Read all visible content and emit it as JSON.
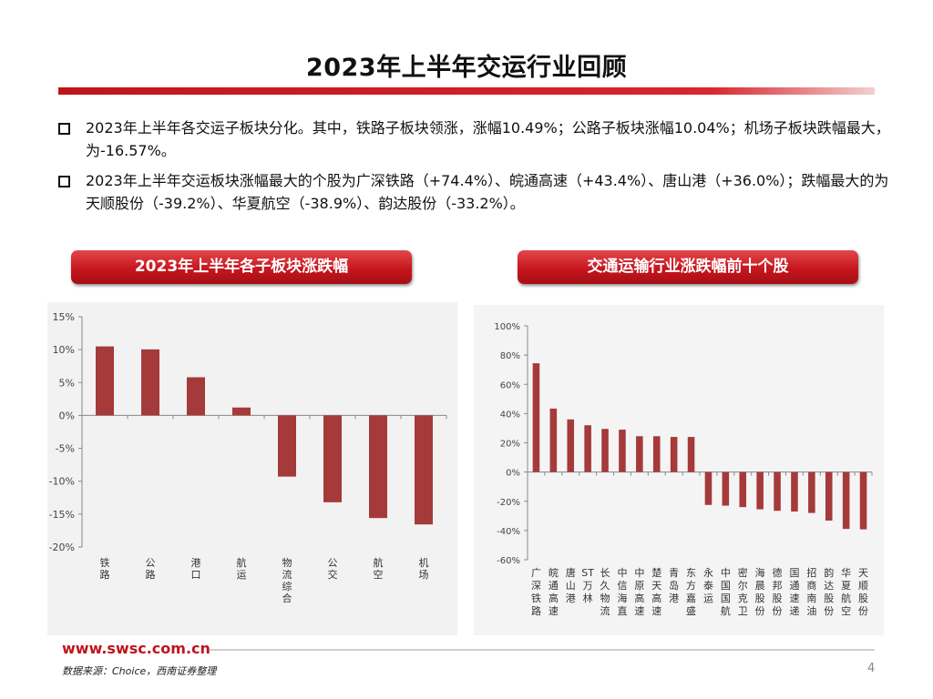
{
  "page": {
    "title": "2023年上半年交运行业回顾",
    "bullets": [
      "2023年上半年各交运子板块分化。其中，铁路子板块领涨，涨幅10.49%；公路子板块涨幅10.04%；机场子板块跌幅最大，为-16.57%。",
      "2023年上半年交运板块涨幅最大的个股为广深铁路（+74.4%）、皖通高速（+43.4%）、唐山港（+36.0%）；跌幅最大的为天顺股份（-39.2%）、华夏航空（-38.9%）、韵达股份（-33.2%）。"
    ],
    "chart1_header": "2023年上半年各子板块涨跌幅",
    "chart2_header": "交通运输行业涨跌幅前十个股",
    "footer_url": "www.swsc.com.cn",
    "footer_source": "数据来源：Choice，西南证券整理",
    "page_number": "4"
  },
  "chart_data": [
    {
      "type": "bar",
      "title": "2023年上半年各子板块涨跌幅",
      "categories": [
        "铁路",
        "公路",
        "港口",
        "航运",
        "物流综合",
        "公交",
        "航空",
        "机场"
      ],
      "values": [
        10.49,
        10.04,
        5.8,
        1.2,
        -9.3,
        -13.2,
        -15.6,
        -16.57
      ],
      "ylim": [
        -20,
        15
      ],
      "yticks": [
        15,
        10,
        5,
        0,
        -5,
        -10,
        -15,
        -20
      ],
      "unit": "%",
      "color": "#a53a3a"
    },
    {
      "type": "bar",
      "title": "交通运输行业涨跌幅前十个股",
      "categories": [
        "广深铁路",
        "皖通高速",
        "唐山港",
        "ST万林",
        "长久物流",
        "中信海直",
        "中原高速",
        "楚天高速",
        "青岛港",
        "东方嘉盛",
        "永泰运",
        "中国国航",
        "密尔克卫",
        "海晨股份",
        "德邦股份",
        "国通速递",
        "招商南油",
        "韵达股份",
        "华夏航空",
        "天顺股份"
      ],
      "values": [
        74.4,
        43.4,
        36.0,
        32.0,
        29.5,
        29.0,
        24.5,
        24.5,
        24.0,
        24.0,
        -22.5,
        -23.0,
        -24.0,
        -25.5,
        -26.5,
        -27.0,
        -28.0,
        -33.2,
        -38.9,
        -39.2
      ],
      "ylim": [
        -60,
        100
      ],
      "yticks": [
        100,
        80,
        60,
        40,
        20,
        0,
        -20,
        -40,
        -60
      ],
      "unit": "%",
      "color": "#a53a3a"
    }
  ]
}
